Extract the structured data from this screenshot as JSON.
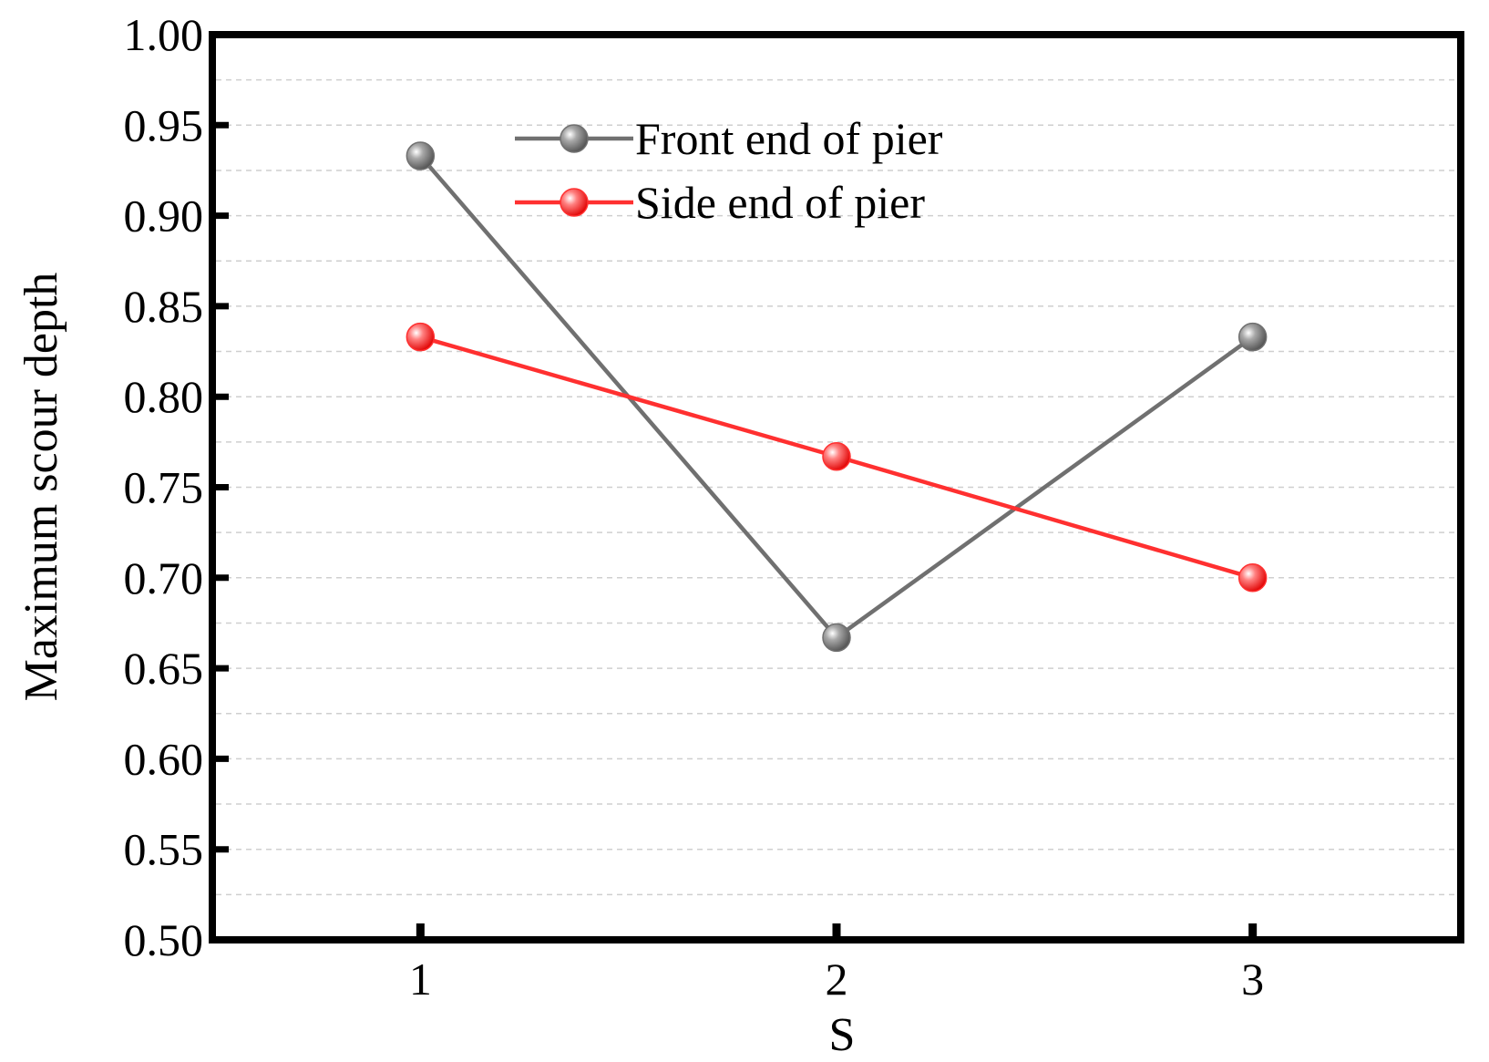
{
  "chart_data": {
    "type": "line",
    "xlabel": "S",
    "ylabel": "Maximum scour depth",
    "categories": [
      "1",
      "2",
      "3"
    ],
    "x": [
      1,
      2,
      3
    ],
    "xlim": [
      0.5,
      3.5
    ],
    "ylim": [
      0.5,
      1.0
    ],
    "yticks": [
      "0.50",
      "0.55",
      "0.60",
      "0.65",
      "0.70",
      "0.75",
      "0.80",
      "0.85",
      "0.90",
      "0.95",
      "1.00"
    ],
    "grid": true,
    "legend_position": "top-center",
    "series": [
      {
        "name": "Front end of pier",
        "values": [
          0.933,
          0.667,
          0.833
        ],
        "color": "#707070"
      },
      {
        "name": "Side end of pier",
        "values": [
          0.833,
          0.767,
          0.7
        ],
        "color": "#ff3030"
      }
    ]
  }
}
